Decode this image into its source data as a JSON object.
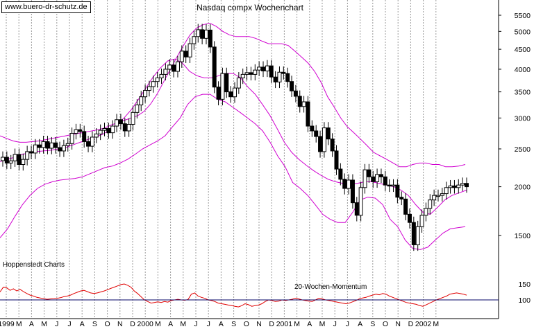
{
  "watermark": "www.buero-dr-schutz.de",
  "source_label": "Hoppenstedt Charts",
  "colors": {
    "candle": "#000000",
    "band": "#d000d0",
    "momentum": "#e00000",
    "grid": "#9a9a9a",
    "ref": "#000066"
  },
  "chart_data": [
    {
      "type": "candlestick",
      "title": "Nasdaq compx Wochenchart",
      "y_scale": "log",
      "ylim": [
        1300,
        6000
      ],
      "y_ticks": [
        1500,
        2000,
        2500,
        3000,
        3500,
        4000,
        4500,
        5000,
        5500
      ],
      "x_labels": [
        "1999",
        "M",
        "A",
        "M",
        "J",
        "J",
        "A",
        "S",
        "O",
        "N",
        "D",
        "2000",
        "M",
        "A",
        "M",
        "J",
        "J",
        "A",
        "S",
        "O",
        "N",
        "D",
        "2001",
        "M",
        "A",
        "M",
        "J",
        "J",
        "A",
        "S",
        "O",
        "N",
        "D",
        "2002",
        "M"
      ],
      "weekly_close": [
        2380,
        2300,
        2330,
        2420,
        2280,
        2350,
        2460,
        2440,
        2560,
        2520,
        2610,
        2510,
        2590,
        2520,
        2470,
        2550,
        2580,
        2740,
        2800,
        2770,
        2610,
        2540,
        2680,
        2730,
        2790,
        2820,
        2750,
        2860,
        2970,
        2900,
        2780,
        2890,
        3100,
        3240,
        3400,
        3530,
        3610,
        3720,
        3800,
        3880,
        4000,
        4100,
        3950,
        4180,
        4450,
        4300,
        4650,
        4850,
        5050,
        4800,
        5040,
        4560,
        3600,
        3350,
        3900,
        3500,
        3400,
        3580,
        3800,
        3880,
        3920,
        3880,
        3980,
        4050,
        3960,
        4080,
        3820,
        3710,
        3930,
        3900,
        3720,
        3520,
        3410,
        3210,
        3300,
        2860,
        2780,
        2690,
        2460,
        2830,
        2650,
        2470,
        2220,
        2090,
        1980,
        2080,
        1820,
        1690,
        1990,
        2210,
        2120,
        2060,
        2150,
        2120,
        2020,
        2010,
        2020,
        1880,
        1860,
        1700,
        1620,
        1420,
        1580,
        1690,
        1760,
        1850,
        1900,
        1900,
        1920,
        1990,
        2010,
        1990,
        2020,
        2040,
        2000
      ],
      "upper_band": [
        2700,
        2660,
        2620,
        2600,
        2600,
        2610,
        2620,
        2640,
        2660,
        2680,
        2700,
        2720,
        2740,
        2760,
        2780,
        2800,
        2830,
        2880,
        2920,
        2960,
        3000,
        3040,
        3120,
        3260,
        3460,
        3720,
        4000,
        4300,
        4600,
        4900,
        5100,
        5200,
        5250,
        5150,
        5000,
        4900,
        4850,
        4850,
        4850,
        4800,
        4720,
        4650,
        4650,
        4650,
        4600,
        4450,
        4300,
        4150,
        3950,
        3700,
        3400,
        3200,
        3000,
        2850,
        2750,
        2650,
        2550,
        2450,
        2400,
        2350,
        2300,
        2250,
        2250,
        2280,
        2300,
        2300,
        2280,
        2280,
        2250,
        2250,
        2260,
        2280
      ],
      "middle_band": [
        2320,
        2350,
        2380,
        2420,
        2440,
        2460,
        2470,
        2480,
        2500,
        2520,
        2560,
        2600,
        2640,
        2680,
        2720,
        2790,
        2880,
        3000,
        3150,
        3350,
        3580,
        3820,
        4030,
        4200,
        4250,
        4150,
        3950,
        3850,
        3800,
        3800,
        3850,
        3900,
        3900,
        3800,
        3600,
        3450,
        3250,
        3050,
        2820,
        2600,
        2450,
        2350,
        2270,
        2200,
        2140,
        2090,
        2060,
        2040,
        2030,
        2040,
        2060,
        2060,
        2040,
        2020,
        2000,
        1960,
        1900,
        1800,
        1720,
        1700,
        1770,
        1850,
        1900,
        1930,
        1960
      ],
      "lower_band": [
        1480,
        1560,
        1680,
        1800,
        1900,
        1980,
        2030,
        2060,
        2080,
        2090,
        2100,
        2120,
        2160,
        2200,
        2240,
        2260,
        2300,
        2350,
        2420,
        2500,
        2560,
        2620,
        2700,
        2850,
        3000,
        3250,
        3400,
        3450,
        3450,
        3350,
        3300,
        3200,
        3100,
        3000,
        2900,
        2780,
        2600,
        2400,
        2250,
        2050,
        1980,
        1900,
        1800,
        1700,
        1650,
        1620,
        1620,
        1720,
        1850,
        1880,
        1870,
        1800,
        1650,
        1580,
        1460,
        1390,
        1380,
        1400,
        1460,
        1520,
        1560,
        1570,
        1580
      ]
    },
    {
      "type": "line",
      "title": "20-Wochen-Momentum",
      "y_ticks": [
        100,
        150
      ],
      "reference": 100,
      "values": [
        125,
        140,
        138,
        130,
        135,
        128,
        133,
        126,
        120,
        115,
        112,
        108,
        106,
        104,
        102,
        103,
        104,
        105,
        107,
        110,
        112,
        115,
        120,
        124,
        128,
        130,
        126,
        122,
        120,
        122,
        125,
        128,
        132,
        136,
        140,
        144,
        148,
        150,
        146,
        140,
        128,
        120,
        110,
        100,
        95,
        90,
        92,
        94,
        92,
        95,
        93,
        98,
        100,
        102,
        100,
        99,
        101,
        118,
        122,
        112,
        108,
        105,
        100,
        98,
        95,
        90,
        88,
        86,
        84,
        82,
        80,
        78,
        82,
        88,
        85,
        80,
        82,
        84,
        88,
        95,
        100,
        98,
        95,
        96,
        100,
        98,
        100,
        102,
        105,
        103,
        100,
        98,
        96,
        95,
        100,
        105,
        103,
        100,
        98,
        96,
        94,
        92,
        90,
        88,
        90,
        94,
        98,
        103,
        106,
        108,
        112,
        115,
        118,
        116,
        120,
        118,
        112,
        108,
        104,
        100,
        96,
        92,
        90,
        88,
        86,
        82,
        80,
        85,
        90,
        95,
        100,
        104,
        108,
        112,
        118,
        120,
        122,
        120,
        118,
        115
      ]
    }
  ]
}
